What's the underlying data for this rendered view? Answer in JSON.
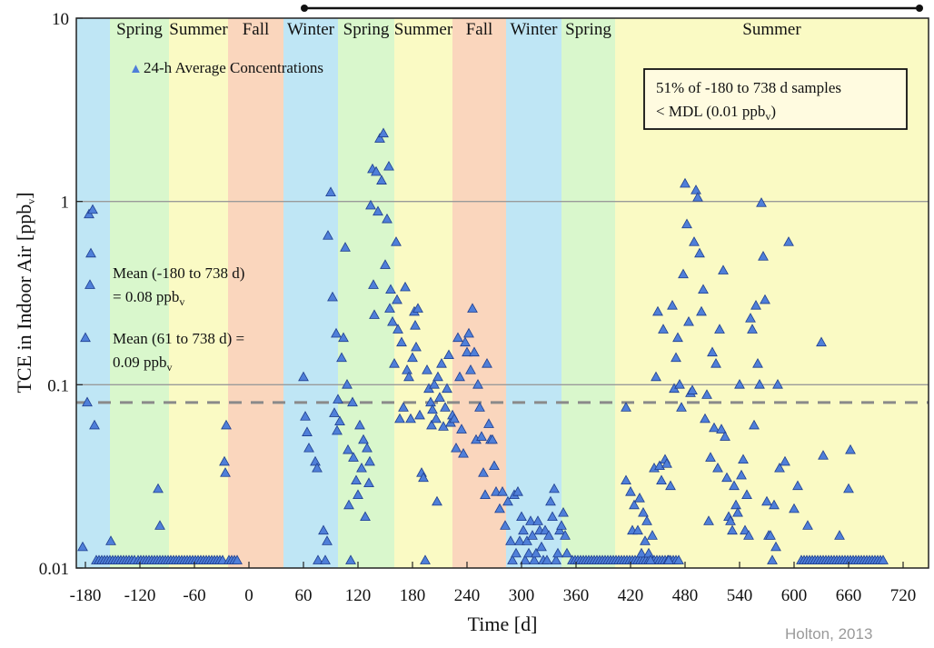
{
  "chart_data": {
    "type": "scatter",
    "ylabel_main": "TCE in Indoor Air [ppb",
    "ylabel_sub": "v",
    "ylabel_close": "]",
    "xlabel": "Time [d]",
    "yscale": "log",
    "xlim": [
      -190,
      748
    ],
    "ylim": [
      0.01,
      10
    ],
    "x_ticks": [
      "-180",
      "-120",
      "-60",
      "0",
      "60",
      "120",
      "180",
      "240",
      "300",
      "360",
      "420",
      "480",
      "540",
      "600",
      "660",
      "720"
    ],
    "y_ticks": [
      "0.01",
      "0.1",
      "1",
      "10"
    ],
    "reference_lines": [
      0.1,
      1
    ],
    "mean_line_value": 0.08,
    "mean_line_color": "#8a8a8a",
    "legend": {
      "marker": "▲",
      "label": "24-h Average Concentrations"
    },
    "seasons": [
      {
        "label": "",
        "start": -190,
        "end": -153,
        "color": "#bfe6f5"
      },
      {
        "label": "Spring",
        "start": -153,
        "end": -88,
        "color": "#d9f7cc"
      },
      {
        "label": "Summer",
        "start": -88,
        "end": -23,
        "color": "#fafac4"
      },
      {
        "label": "Fall",
        "start": -23,
        "end": 38,
        "color": "#fad6bd"
      },
      {
        "label": "Winter",
        "start": 38,
        "end": 98,
        "color": "#bfe6f5"
      },
      {
        "label": "Spring",
        "start": 98,
        "end": 160,
        "color": "#d9f7cc"
      },
      {
        "label": "Summer",
        "start": 160,
        "end": 224,
        "color": "#fafac4"
      },
      {
        "label": "Fall",
        "start": 224,
        "end": 283,
        "color": "#fad6bd"
      },
      {
        "label": "Winter",
        "start": 283,
        "end": 344,
        "color": "#bfe6f5"
      },
      {
        "label": "Spring",
        "start": 344,
        "end": 403,
        "color": "#d9f7cc"
      },
      {
        "label": "Summer",
        "start": 403,
        "end": 748,
        "color": "#fafac4"
      }
    ],
    "annotation_box": {
      "line1": "51% of -180 to 738 d samples",
      "line2_main": "< MDL (0.01 ppb",
      "line2_sub": "v",
      "line2_close": ")"
    },
    "mean_text_1": {
      "line1": "Mean (-180 to 738 d)",
      "line2_main": "= 0.08 ppb",
      "line2_sub": "v"
    },
    "mean_text_2": {
      "line1": "Mean (61 to 738 d) =",
      "line2_main": "0.09 ppb",
      "line2_sub": "v"
    },
    "marker_color": "#4f7fd9",
    "marker_edge": "#1f3f8f",
    "series": [
      {
        "name": "24-h Average Concentrations",
        "points": [
          [
            -183,
            0.013
          ],
          [
            -180,
            0.18
          ],
          [
            -178,
            0.08
          ],
          [
            -176,
            0.85
          ],
          [
            -175,
            0.35
          ],
          [
            -174,
            0.52
          ],
          [
            -172,
            0.9
          ],
          [
            -170,
            0.06
          ],
          [
            -152,
            0.014
          ],
          [
            -100,
            0.027
          ],
          [
            -98,
            0.017
          ],
          [
            -25,
            0.06
          ],
          [
            -27,
            0.038
          ],
          [
            -26,
            0.033
          ],
          [
            60,
            0.11
          ],
          [
            62,
            0.067
          ],
          [
            64,
            0.055
          ],
          [
            66,
            0.045
          ],
          [
            73,
            0.038
          ],
          [
            75,
            0.035
          ],
          [
            76,
            0.011
          ],
          [
            82,
            0.016
          ],
          [
            84,
            0.011
          ],
          [
            86,
            0.014
          ],
          [
            87,
            0.65
          ],
          [
            90,
            1.12
          ],
          [
            92,
            0.3
          ],
          [
            94,
            0.07
          ],
          [
            96,
            0.19
          ],
          [
            97,
            0.056
          ],
          [
            98,
            0.083
          ],
          [
            100,
            0.063
          ],
          [
            102,
            0.14
          ],
          [
            104,
            0.18
          ],
          [
            106,
            0.56
          ],
          [
            108,
            0.1
          ],
          [
            109,
            0.044
          ],
          [
            110,
            0.022
          ],
          [
            112,
            0.011
          ],
          [
            114,
            0.08
          ],
          [
            115,
            0.04
          ],
          [
            118,
            0.03
          ],
          [
            120,
            0.025
          ],
          [
            122,
            0.06
          ],
          [
            124,
            0.035
          ],
          [
            126,
            0.05
          ],
          [
            128,
            0.019
          ],
          [
            130,
            0.045
          ],
          [
            132,
            0.029
          ],
          [
            133,
            0.038
          ],
          [
            134,
            0.95
          ],
          [
            136,
            1.5
          ],
          [
            137,
            0.35
          ],
          [
            138,
            0.24
          ],
          [
            140,
            1.45
          ],
          [
            142,
            0.88
          ],
          [
            144,
            2.2
          ],
          [
            146,
            1.3
          ],
          [
            148,
            2.35
          ],
          [
            150,
            0.45
          ],
          [
            152,
            0.8
          ],
          [
            154,
            1.55
          ],
          [
            155,
            0.26
          ],
          [
            156,
            0.33
          ],
          [
            158,
            0.22
          ],
          [
            160,
            0.13
          ],
          [
            162,
            0.6
          ],
          [
            163,
            0.29
          ],
          [
            164,
            0.2
          ],
          [
            166,
            0.065
          ],
          [
            168,
            0.17
          ],
          [
            170,
            0.075
          ],
          [
            172,
            0.34
          ],
          [
            174,
            0.12
          ],
          [
            176,
            0.11
          ],
          [
            178,
            0.065
          ],
          [
            180,
            0.14
          ],
          [
            182,
            0.25
          ],
          [
            183,
            0.21
          ],
          [
            184,
            0.16
          ],
          [
            186,
            0.26
          ],
          [
            188,
            0.068
          ],
          [
            190,
            0.033
          ],
          [
            192,
            0.031
          ],
          [
            194,
            0.011
          ],
          [
            196,
            0.12
          ],
          [
            198,
            0.095
          ],
          [
            200,
            0.08
          ],
          [
            201,
            0.06
          ],
          [
            202,
            0.073
          ],
          [
            204,
            0.1
          ],
          [
            206,
            0.065
          ],
          [
            207,
            0.023
          ],
          [
            208,
            0.11
          ],
          [
            210,
            0.085
          ],
          [
            212,
            0.13
          ],
          [
            214,
            0.059
          ],
          [
            216,
            0.075
          ],
          [
            218,
            0.095
          ],
          [
            220,
            0.145
          ],
          [
            222,
            0.062
          ],
          [
            224,
            0.068
          ],
          [
            226,
            0.065
          ],
          [
            228,
            0.045
          ],
          [
            230,
            0.18
          ],
          [
            232,
            0.11
          ],
          [
            234,
            0.057
          ],
          [
            236,
            0.042
          ],
          [
            238,
            0.17
          ],
          [
            240,
            0.15
          ],
          [
            242,
            0.19
          ],
          [
            244,
            0.12
          ],
          [
            246,
            0.26
          ],
          [
            248,
            0.15
          ],
          [
            250,
            0.05
          ],
          [
            252,
            0.1
          ],
          [
            254,
            0.075
          ],
          [
            256,
            0.052
          ],
          [
            258,
            0.033
          ],
          [
            260,
            0.025
          ],
          [
            262,
            0.13
          ],
          [
            264,
            0.061
          ],
          [
            266,
            0.05
          ],
          [
            268,
            0.05
          ],
          [
            270,
            0.036
          ],
          [
            272,
            0.026
          ],
          [
            276,
            0.021
          ],
          [
            279,
            0.026
          ],
          [
            282,
            0.017
          ],
          [
            285,
            0.023
          ],
          [
            288,
            0.014
          ],
          [
            290,
            0.011
          ],
          [
            292,
            0.025
          ],
          [
            294,
            0.012
          ],
          [
            296,
            0.026
          ],
          [
            298,
            0.014
          ],
          [
            300,
            0.019
          ],
          [
            302,
            0.016
          ],
          [
            304,
            0.011
          ],
          [
            306,
            0.014
          ],
          [
            308,
            0.012
          ],
          [
            310,
            0.018
          ],
          [
            312,
            0.015
          ],
          [
            314,
            0.011
          ],
          [
            316,
            0.012
          ],
          [
            318,
            0.018
          ],
          [
            320,
            0.016
          ],
          [
            322,
            0.013
          ],
          [
            324,
            0.011
          ],
          [
            326,
            0.016
          ],
          [
            328,
            0.011
          ],
          [
            330,
            0.015
          ],
          [
            332,
            0.023
          ],
          [
            334,
            0.019
          ],
          [
            336,
            0.027
          ],
          [
            338,
            0.011
          ],
          [
            340,
            0.012
          ],
          [
            342,
            0.016
          ],
          [
            344,
            0.017
          ],
          [
            346,
            0.02
          ],
          [
            348,
            0.015
          ],
          [
            350,
            0.012
          ],
          [
            415,
            0.075
          ],
          [
            415,
            0.03
          ],
          [
            420,
            0.026
          ],
          [
            422,
            0.016
          ],
          [
            424,
            0.022
          ],
          [
            428,
            0.016
          ],
          [
            430,
            0.024
          ],
          [
            432,
            0.012
          ],
          [
            434,
            0.02
          ],
          [
            436,
            0.014
          ],
          [
            438,
            0.018
          ],
          [
            440,
            0.012
          ],
          [
            442,
            0.011
          ],
          [
            444,
            0.015
          ],
          [
            446,
            0.035
          ],
          [
            448,
            0.11
          ],
          [
            450,
            0.25
          ],
          [
            452,
            0.036
          ],
          [
            454,
            0.03
          ],
          [
            456,
            0.2
          ],
          [
            458,
            0.039
          ],
          [
            460,
            0.037
          ],
          [
            462,
            0.011
          ],
          [
            464,
            0.028
          ],
          [
            466,
            0.27
          ],
          [
            468,
            0.095
          ],
          [
            470,
            0.14
          ],
          [
            472,
            0.18
          ],
          [
            474,
            0.1
          ],
          [
            476,
            0.075
          ],
          [
            478,
            0.4
          ],
          [
            480,
            1.25
          ],
          [
            482,
            0.75
          ],
          [
            484,
            0.22
          ],
          [
            486,
            0.09
          ],
          [
            488,
            0.093
          ],
          [
            490,
            0.6
          ],
          [
            492,
            1.15
          ],
          [
            494,
            1.05
          ],
          [
            496,
            0.52
          ],
          [
            498,
            0.25
          ],
          [
            500,
            0.33
          ],
          [
            502,
            0.065
          ],
          [
            504,
            0.088
          ],
          [
            506,
            0.018
          ],
          [
            508,
            0.04
          ],
          [
            510,
            0.15
          ],
          [
            512,
            0.058
          ],
          [
            514,
            0.13
          ],
          [
            516,
            0.035
          ],
          [
            518,
            0.2
          ],
          [
            520,
            0.057
          ],
          [
            522,
            0.42
          ],
          [
            524,
            0.052
          ],
          [
            526,
            0.031
          ],
          [
            528,
            0.019
          ],
          [
            530,
            0.018
          ],
          [
            532,
            0.016
          ],
          [
            534,
            0.028
          ],
          [
            536,
            0.022
          ],
          [
            538,
            0.02
          ],
          [
            540,
            0.1
          ],
          [
            542,
            0.032
          ],
          [
            544,
            0.039
          ],
          [
            546,
            0.016
          ],
          [
            548,
            0.025
          ],
          [
            550,
            0.015
          ],
          [
            552,
            0.23
          ],
          [
            554,
            0.2
          ],
          [
            556,
            0.06
          ],
          [
            558,
            0.27
          ],
          [
            560,
            0.13
          ],
          [
            562,
            0.1
          ],
          [
            564,
            0.98
          ],
          [
            566,
            0.5
          ],
          [
            568,
            0.29
          ],
          [
            570,
            0.023
          ],
          [
            572,
            0.015
          ],
          [
            574,
            0.015
          ],
          [
            576,
            0.011
          ],
          [
            578,
            0.022
          ],
          [
            580,
            0.013
          ],
          [
            582,
            0.1
          ],
          [
            584,
            0.035
          ],
          [
            590,
            0.038
          ],
          [
            594,
            0.6
          ],
          [
            600,
            0.021
          ],
          [
            604,
            0.028
          ],
          [
            615,
            0.017
          ],
          [
            630,
            0.17
          ],
          [
            632,
            0.041
          ],
          [
            650,
            0.015
          ],
          [
            660,
            0.027
          ],
          [
            662,
            0.044
          ]
        ],
        "mdl_ranges": [
          [
            -168,
            -125
          ],
          [
            -122,
            -28
          ],
          [
            -22,
            -12
          ],
          [
            356,
            473
          ],
          [
            608,
            700
          ]
        ]
      }
    ],
    "top_arrow": {
      "start": 61,
      "end": 738
    }
  },
  "credit": "Holton, 2013"
}
